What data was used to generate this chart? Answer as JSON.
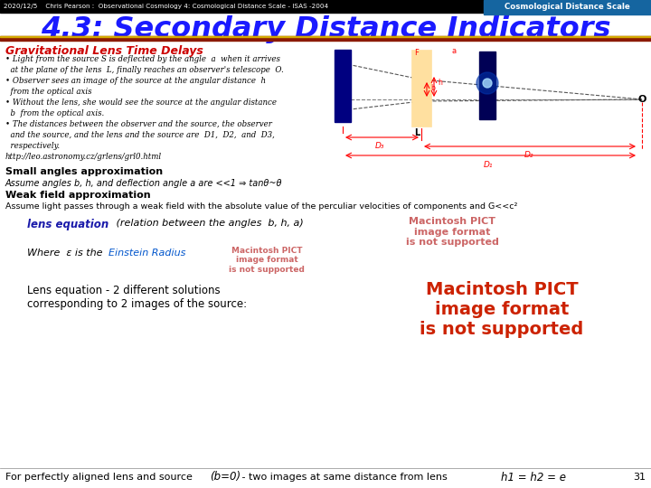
{
  "header_left": "2020/12/5    Chris Pearson :  Observational Cosmology 4: Cosmological Distance Scale - ISAS -2004",
  "header_right": "Cosmological Distance Scale",
  "title": "4.3: Secondary Distance Indicators",
  "section1_title": "Gravitational Lens Time Delays",
  "bullet1": "• Light from the source S is deflected by the angle  a  when it arrives\n  at the plane of the lens  L, finally reaches an observer's telescope  O.",
  "bullet2": "• Observer sees an image of the source at the angular distance  h\n  from the optical axis",
  "bullet3": "• Without the lens, she would see the source at the angular distance\n  b  from the optical axis.",
  "bullet4": "• The distances between the observer and the source, the observer\n  and the source, and the lens and the source are  D1,  D2,  and  D3,\n  respectively.",
  "url": "http://leo.astronomy.cz/grlens/grl0.html",
  "section2_title": "Small angles approximation",
  "small_angles_text": "Assume angles b, h, and deflection angle a are <<1 ⇒ tanθ~θ",
  "weak_field_title": "Weak field approximation",
  "weak_field_text": "Assume light passes through a weak field with the absolute value of the perculiar velocities of components and G<<c²",
  "lens_eq_label": "lens equation",
  "lens_eq_text": " (relation between the angles  b, h, a)",
  "einstein_text1": "Where  ε is the ",
  "einstein_text2": "Einstein Radius",
  "lens_sol_text": "Lens equation - 2 different solutions\ncorresponding to 2 images of the source:",
  "footer_text": "For perfectly aligned lens and source  ",
  "footer_math": "(b=0)",
  "footer_text2": " - two images at same distance from lens  ",
  "footer_math2": "h1 = h2 = e",
  "footer_page": "31",
  "bg_color": "#ffffff",
  "header_bg": "#000000",
  "header_right_bg": "#1565a0",
  "title_color": "#1a1aff",
  "title_bar_color": "#8b1a00",
  "section1_color": "#cc0000",
  "body_text_color": "#000000",
  "lens_eq_color": "#1a1aaa",
  "einstein_radius_color": "#0055cc",
  "pict1_color": "#cc6666",
  "pict2_color": "#cc6666",
  "pict3_color": "#cc2200",
  "footer_color": "#000000",
  "diagram_bg": "#ffe0a0"
}
